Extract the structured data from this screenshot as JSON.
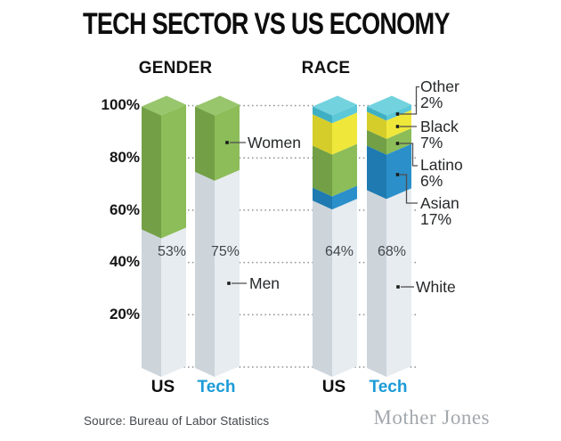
{
  "title": "TECH SECTOR VS US ECONOMY",
  "source_note": "Source: Bureau of Labor Statistics",
  "publisher": "Mother Jones",
  "colors": {
    "tech_label": "#1b9bd7",
    "grid": "#8f9498",
    "leader_line": "#4d4d4d",
    "palette": {
      "gray": {
        "front": "#e7ecf0",
        "side": "#cdd5db",
        "top": "#f2f5f7"
      },
      "green": {
        "front": "#8cbd59",
        "side": "#73a046",
        "top": "#98c66c"
      },
      "blue": {
        "front": "#2b90ca",
        "side": "#1e7ab1",
        "top": "#4aa5d6"
      },
      "yellow": {
        "front": "#efe83b",
        "side": "#d5cd29",
        "top": "#f3ee62"
      },
      "cyan": {
        "front": "#5dc8d8",
        "side": "#3fafc3",
        "top": "#72d2de"
      }
    }
  },
  "axis": {
    "ticks": [
      "100%",
      "80%",
      "60%",
      "40%",
      "20%"
    ]
  },
  "annotations": {
    "women": "Women",
    "men": "Men",
    "white": "White",
    "legend": [
      {
        "name": "Other",
        "pct": "2%"
      },
      {
        "name": "Black",
        "pct": "7%"
      },
      {
        "name": "Latino",
        "pct": "6%"
      },
      {
        "name": "Asian",
        "pct": "17%"
      }
    ]
  },
  "chart_data": {
    "type": "bar",
    "stacked": true,
    "units": "percent",
    "ylim": [
      0,
      100
    ],
    "y_ticks": [
      100,
      80,
      60,
      40,
      20
    ],
    "grid": "dotted horizontal lines every 20%",
    "title": "TECH SECTOR VS US ECONOMY",
    "groups": [
      {
        "title": "GENDER",
        "bars": [
          {
            "x_label": "US",
            "value_label": "53%",
            "segments": [
              {
                "name": "Men",
                "value": 53,
                "color_key": "gray"
              },
              {
                "name": "Women",
                "value": 47,
                "color_key": "green"
              }
            ]
          },
          {
            "x_label": "Tech",
            "value_label": "75%",
            "segments": [
              {
                "name": "Men",
                "value": 75,
                "color_key": "gray"
              },
              {
                "name": "Women",
                "value": 25,
                "color_key": "green"
              }
            ]
          }
        ]
      },
      {
        "title": "RACE",
        "bars": [
          {
            "x_label": "US",
            "value_label": "64%",
            "segments": [
              {
                "name": "White",
                "value": 64,
                "color_key": "gray"
              },
              {
                "name": "Asian",
                "value": 5,
                "color_key": "blue"
              },
              {
                "name": "Latino",
                "value": 16,
                "color_key": "green"
              },
              {
                "name": "Black",
                "value": 12,
                "color_key": "yellow"
              },
              {
                "name": "Other",
                "value": 3,
                "color_key": "cyan"
              }
            ]
          },
          {
            "x_label": "Tech",
            "value_label": "68%",
            "segments": [
              {
                "name": "White",
                "value": 68,
                "color_key": "gray"
              },
              {
                "name": "Asian",
                "value": 17,
                "color_key": "blue"
              },
              {
                "name": "Latino",
                "value": 6,
                "color_key": "green"
              },
              {
                "name": "Black",
                "value": 7,
                "color_key": "yellow"
              },
              {
                "name": "Other",
                "value": 2,
                "color_key": "cyan"
              }
            ]
          }
        ]
      }
    ]
  }
}
